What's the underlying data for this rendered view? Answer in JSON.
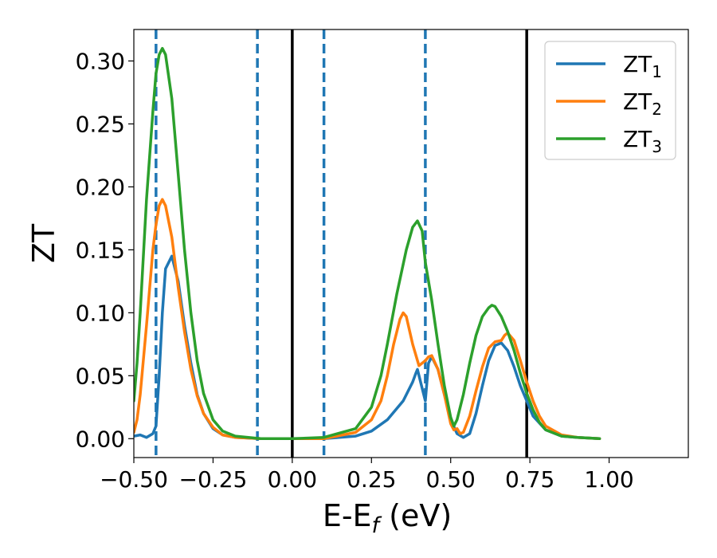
{
  "chart_data": {
    "type": "line",
    "xlabel": "E-E",
    "xlabel_sub": "f",
    "xlabel_unit": " (eV)",
    "ylabel": "ZT",
    "xlim": [
      -0.5,
      1.25
    ],
    "ylim": [
      -0.015,
      0.325
    ],
    "x_ticks": [
      -0.5,
      -0.25,
      0.0,
      0.25,
      0.5,
      0.75,
      1.0
    ],
    "x_tick_labels": [
      "−0.50",
      "−0.25",
      "0.00",
      "0.25",
      "0.50",
      "0.75",
      "1.00"
    ],
    "y_ticks": [
      0.0,
      0.05,
      0.1,
      0.15,
      0.2,
      0.25,
      0.3
    ],
    "y_tick_labels": [
      "0.00",
      "0.05",
      "0.10",
      "0.15",
      "0.20",
      "0.25",
      "0.30"
    ],
    "grid": false,
    "legend_position": "top-right",
    "vlines_dashed": [
      -0.43,
      -0.11,
      0.1,
      0.42
    ],
    "vlines_solid": [
      0.0,
      0.74
    ],
    "series": [
      {
        "name": "ZT",
        "name_sub": "1",
        "color": "#1f77b4",
        "points": [
          [
            -0.5,
            0.002
          ],
          [
            -0.48,
            0.003
          ],
          [
            -0.46,
            0.001
          ],
          [
            -0.44,
            0.004
          ],
          [
            -0.43,
            0.01
          ],
          [
            -0.42,
            0.05
          ],
          [
            -0.41,
            0.1
          ],
          [
            -0.4,
            0.135
          ],
          [
            -0.38,
            0.145
          ],
          [
            -0.36,
            0.125
          ],
          [
            -0.34,
            0.09
          ],
          [
            -0.32,
            0.06
          ],
          [
            -0.3,
            0.035
          ],
          [
            -0.28,
            0.02
          ],
          [
            -0.25,
            0.008
          ],
          [
            -0.22,
            0.003
          ],
          [
            -0.18,
            0.001
          ],
          [
            -0.1,
            0.0
          ],
          [
            0.0,
            0.0
          ],
          [
            0.1,
            0.0
          ],
          [
            0.2,
            0.002
          ],
          [
            0.25,
            0.006
          ],
          [
            0.3,
            0.015
          ],
          [
            0.35,
            0.03
          ],
          [
            0.38,
            0.045
          ],
          [
            0.39,
            0.052
          ],
          [
            0.395,
            0.055
          ],
          [
            0.41,
            0.04
          ],
          [
            0.42,
            0.03
          ],
          [
            0.43,
            0.06
          ],
          [
            0.44,
            0.065
          ],
          [
            0.46,
            0.055
          ],
          [
            0.48,
            0.035
          ],
          [
            0.5,
            0.015
          ],
          [
            0.52,
            0.004
          ],
          [
            0.54,
            0.001
          ],
          [
            0.56,
            0.004
          ],
          [
            0.58,
            0.02
          ],
          [
            0.6,
            0.042
          ],
          [
            0.62,
            0.062
          ],
          [
            0.64,
            0.074
          ],
          [
            0.66,
            0.076
          ],
          [
            0.68,
            0.07
          ],
          [
            0.7,
            0.057
          ],
          [
            0.72,
            0.042
          ],
          [
            0.74,
            0.03
          ],
          [
            0.76,
            0.018
          ],
          [
            0.8,
            0.007
          ],
          [
            0.85,
            0.002
          ],
          [
            0.9,
            0.001
          ],
          [
            0.97,
            0.0
          ]
        ]
      },
      {
        "name": "ZT",
        "name_sub": "2",
        "color": "#ff7f0e",
        "points": [
          [
            -0.5,
            0.005
          ],
          [
            -0.49,
            0.015
          ],
          [
            -0.48,
            0.035
          ],
          [
            -0.46,
            0.09
          ],
          [
            -0.44,
            0.15
          ],
          [
            -0.43,
            0.17
          ],
          [
            -0.42,
            0.185
          ],
          [
            -0.41,
            0.19
          ],
          [
            -0.4,
            0.185
          ],
          [
            -0.38,
            0.16
          ],
          [
            -0.36,
            0.12
          ],
          [
            -0.34,
            0.085
          ],
          [
            -0.32,
            0.055
          ],
          [
            -0.3,
            0.034
          ],
          [
            -0.28,
            0.02
          ],
          [
            -0.25,
            0.009
          ],
          [
            -0.22,
            0.003
          ],
          [
            -0.18,
            0.001
          ],
          [
            -0.1,
            0.0
          ],
          [
            0.0,
            0.0
          ],
          [
            0.1,
            0.0
          ],
          [
            0.2,
            0.005
          ],
          [
            0.25,
            0.015
          ],
          [
            0.28,
            0.03
          ],
          [
            0.3,
            0.05
          ],
          [
            0.32,
            0.075
          ],
          [
            0.34,
            0.095
          ],
          [
            0.35,
            0.1
          ],
          [
            0.36,
            0.097
          ],
          [
            0.38,
            0.075
          ],
          [
            0.4,
            0.058
          ],
          [
            0.42,
            0.062
          ],
          [
            0.43,
            0.065
          ],
          [
            0.44,
            0.066
          ],
          [
            0.46,
            0.055
          ],
          [
            0.48,
            0.035
          ],
          [
            0.5,
            0.012
          ],
          [
            0.51,
            0.007
          ],
          [
            0.52,
            0.008
          ],
          [
            0.53,
            0.004
          ],
          [
            0.54,
            0.005
          ],
          [
            0.56,
            0.018
          ],
          [
            0.58,
            0.038
          ],
          [
            0.6,
            0.057
          ],
          [
            0.62,
            0.072
          ],
          [
            0.64,
            0.077
          ],
          [
            0.66,
            0.078
          ],
          [
            0.67,
            0.082
          ],
          [
            0.68,
            0.084
          ],
          [
            0.7,
            0.078
          ],
          [
            0.72,
            0.062
          ],
          [
            0.74,
            0.045
          ],
          [
            0.76,
            0.03
          ],
          [
            0.78,
            0.018
          ],
          [
            0.8,
            0.01
          ],
          [
            0.85,
            0.003
          ],
          [
            0.9,
            0.001
          ],
          [
            0.97,
            0.0
          ]
        ]
      },
      {
        "name": "ZT",
        "name_sub": "3",
        "color": "#2ca02c",
        "points": [
          [
            -0.5,
            0.03
          ],
          [
            -0.49,
            0.06
          ],
          [
            -0.48,
            0.1
          ],
          [
            -0.46,
            0.19
          ],
          [
            -0.44,
            0.26
          ],
          [
            -0.43,
            0.29
          ],
          [
            -0.42,
            0.305
          ],
          [
            -0.41,
            0.31
          ],
          [
            -0.4,
            0.305
          ],
          [
            -0.38,
            0.27
          ],
          [
            -0.36,
            0.21
          ],
          [
            -0.34,
            0.15
          ],
          [
            -0.32,
            0.1
          ],
          [
            -0.3,
            0.062
          ],
          [
            -0.28,
            0.036
          ],
          [
            -0.25,
            0.015
          ],
          [
            -0.22,
            0.006
          ],
          [
            -0.18,
            0.002
          ],
          [
            -0.1,
            0.0
          ],
          [
            0.0,
            0.0
          ],
          [
            0.1,
            0.001
          ],
          [
            0.2,
            0.008
          ],
          [
            0.25,
            0.025
          ],
          [
            0.28,
            0.05
          ],
          [
            0.3,
            0.075
          ],
          [
            0.33,
            0.115
          ],
          [
            0.36,
            0.15
          ],
          [
            0.38,
            0.168
          ],
          [
            0.395,
            0.173
          ],
          [
            0.41,
            0.165
          ],
          [
            0.42,
            0.14
          ],
          [
            0.44,
            0.11
          ],
          [
            0.46,
            0.075
          ],
          [
            0.48,
            0.042
          ],
          [
            0.5,
            0.017
          ],
          [
            0.51,
            0.01
          ],
          [
            0.52,
            0.015
          ],
          [
            0.54,
            0.035
          ],
          [
            0.56,
            0.06
          ],
          [
            0.58,
            0.082
          ],
          [
            0.6,
            0.097
          ],
          [
            0.62,
            0.104
          ],
          [
            0.63,
            0.106
          ],
          [
            0.64,
            0.105
          ],
          [
            0.66,
            0.097
          ],
          [
            0.68,
            0.085
          ],
          [
            0.7,
            0.07
          ],
          [
            0.72,
            0.052
          ],
          [
            0.74,
            0.036
          ],
          [
            0.76,
            0.023
          ],
          [
            0.78,
            0.013
          ],
          [
            0.8,
            0.007
          ],
          [
            0.85,
            0.002
          ],
          [
            0.9,
            0.001
          ],
          [
            0.97,
            0.0
          ]
        ]
      }
    ]
  }
}
